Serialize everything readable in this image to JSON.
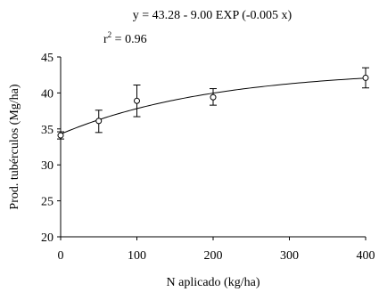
{
  "chart_data": {
    "type": "scatter",
    "xlabel": "N aplicado (kg/ha)",
    "ylabel": "Prod. tubérculos (Mg/ha)",
    "xlim": [
      0,
      400
    ],
    "ylim": [
      20,
      45
    ],
    "x_ticks": [
      0,
      100,
      200,
      300,
      400
    ],
    "y_ticks": [
      20,
      25,
      30,
      35,
      40,
      45
    ],
    "grid": false,
    "annotations": {
      "equation": "y = 43.28 - 9.00 EXP (-0.005 x)",
      "r2_label": "r",
      "r2_sup": "2",
      "r2_value": " = 0.96"
    },
    "points": [
      {
        "x": 0,
        "y": 34.1,
        "err_low": 33.6,
        "err_high": 34.6
      },
      {
        "x": 50,
        "y": 36.1,
        "err_low": 34.5,
        "err_high": 37.6
      },
      {
        "x": 100,
        "y": 38.9,
        "err_low": 36.7,
        "err_high": 41.1
      },
      {
        "x": 200,
        "y": 39.4,
        "err_low": 38.3,
        "err_high": 40.6
      },
      {
        "x": 400,
        "y": 42.1,
        "err_low": 40.7,
        "err_high": 43.5
      }
    ],
    "fit_curve": {
      "a": 43.28,
      "b": 9.0,
      "k": 0.005
    }
  }
}
